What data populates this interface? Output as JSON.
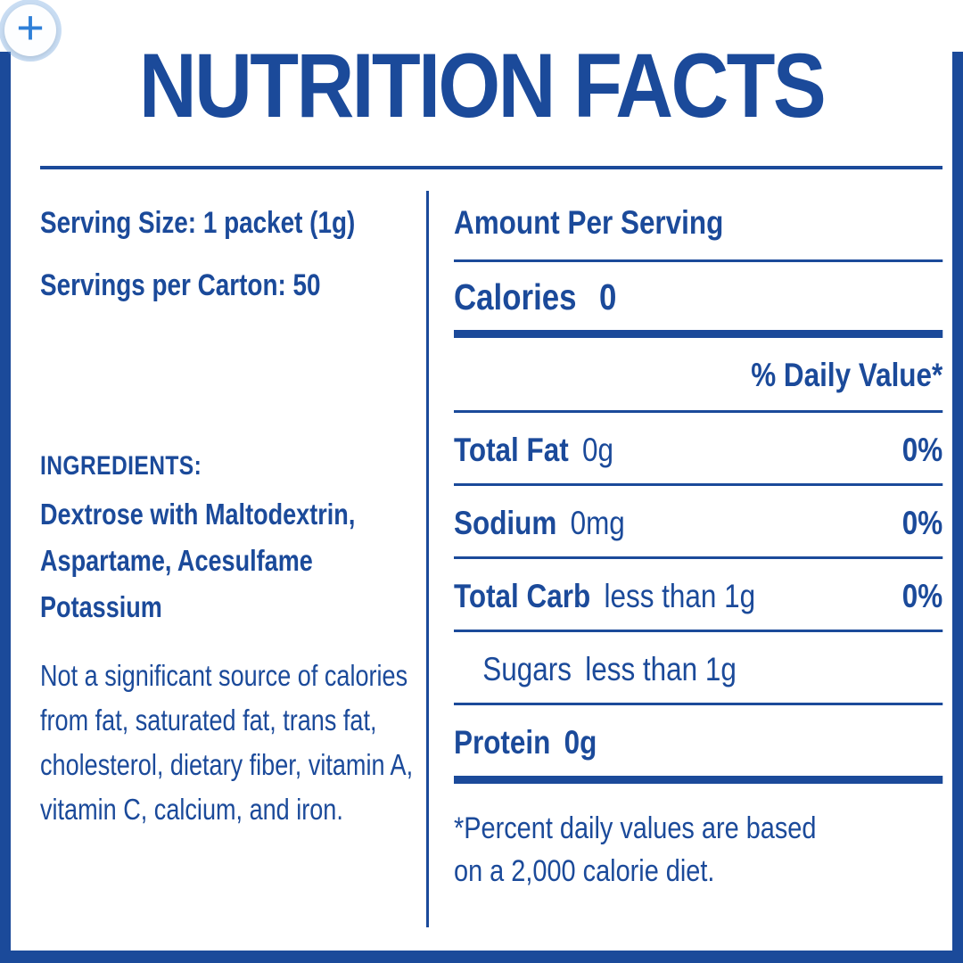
{
  "colors": {
    "label_blue": "#1B4A9A",
    "zoom_icon_blue": "#2F80D8"
  },
  "zoom_button": {
    "icon_glyph": "+"
  },
  "title": "NUTRITION FACTS",
  "left": {
    "serving_size": "Serving Size: 1 packet (1g)",
    "servings_per_carton": "Servings per Carton: 50",
    "ingredients_heading": "INGREDIENTS:",
    "ingredients_text": "Dextrose with Maltodextrin, Aspartame, Acesulfame Potassium",
    "disclaimer": "Not a significant source of calories from fat, saturated fat, trans fat, cholesterol, dietary fiber, vitamin A, vitamin C, calcium, and iron."
  },
  "right": {
    "amount_per_serving": "Amount Per Serving",
    "calories_label": "Calories",
    "calories_value": "0",
    "daily_value_header": "% Daily Value*",
    "rows": [
      {
        "label": "Total Fat",
        "value": "0g",
        "dv": "0%"
      },
      {
        "label": "Sodium",
        "value": "0mg",
        "dv": "0%"
      },
      {
        "label": "Total Carb",
        "value": "less than 1g",
        "dv": "0%"
      },
      {
        "label": "Sugars",
        "value": "less than 1g"
      },
      {
        "label": "Protein",
        "value": "0g"
      }
    ],
    "footnote_line1": "*Percent daily values are based",
    "footnote_line2": "on a 2,000 calorie diet."
  }
}
